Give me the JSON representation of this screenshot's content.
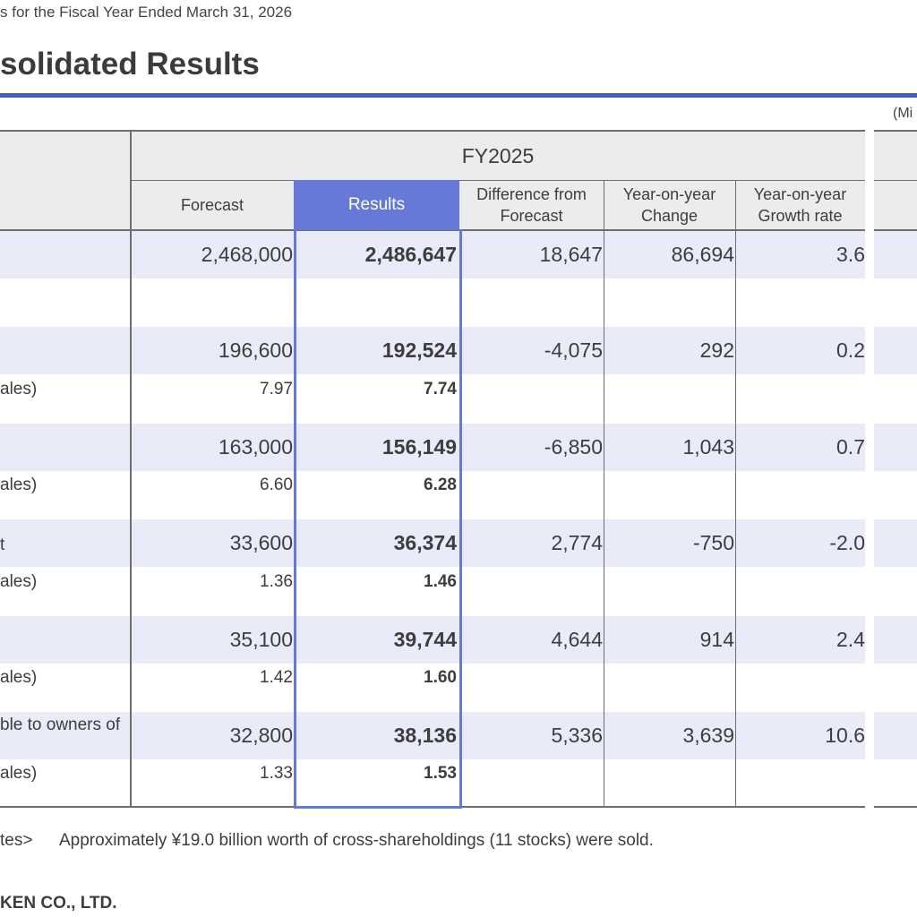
{
  "header": {
    "subtitle": "s for the Fiscal Year Ended March 31, 2026",
    "title": "solidated Results",
    "unit_label": "(Mi"
  },
  "table": {
    "group_header": "FY2025",
    "columns": {
      "forecast": "Forecast",
      "results": "Results",
      "diff": [
        "Difference from",
        "Forecast"
      ],
      "yoy_change": [
        "Year-on-year",
        "Change"
      ],
      "yoy_rate": [
        "Year-on-year",
        "Growth rate"
      ]
    },
    "rows": [
      {
        "label": "",
        "forecast": "2,468,000",
        "results": "2,486,647",
        "diff": "18,647",
        "change": "86,694",
        "rate": "3.6"
      },
      {
        "label": "",
        "forecast": "196,600",
        "results": "192,524",
        "diff": "-4,075",
        "change": "292",
        "rate": "0.2"
      },
      {
        "label": "",
        "forecast": "163,000",
        "results": "156,149",
        "diff": "-6,850",
        "change": "1,043",
        "rate": "0.7"
      },
      {
        "label": "t",
        "forecast": "33,600",
        "results": "36,374",
        "diff": "2,774",
        "change": "-750",
        "rate": "-2.0"
      },
      {
        "label": "",
        "forecast": "35,100",
        "results": "39,744",
        "diff": "4,644",
        "change": "914",
        "rate": "2.4"
      },
      {
        "label": "ble to owners of",
        "forecast": "32,800",
        "results": "38,136",
        "diff": "5,336",
        "change": "3,639",
        "rate": "10.6"
      }
    ],
    "sub_rows": [
      {
        "label": "ales)",
        "forecast": "7.97",
        "results": "7.74"
      },
      {
        "label": "ales)",
        "forecast": "6.60",
        "results": "6.28"
      },
      {
        "label": "ales)",
        "forecast": "1.36",
        "results": "1.46"
      },
      {
        "label": "ales)",
        "forecast": "1.42",
        "results": "1.60"
      },
      {
        "label": "ales)",
        "forecast": "1.33",
        "results": "1.53"
      }
    ]
  },
  "footer": {
    "note_label": "tes>",
    "note_text": "Approximately ¥19.0 billion worth of cross-shareholdings (11 stocks) were sold.",
    "company": "KEN CO., LTD."
  }
}
